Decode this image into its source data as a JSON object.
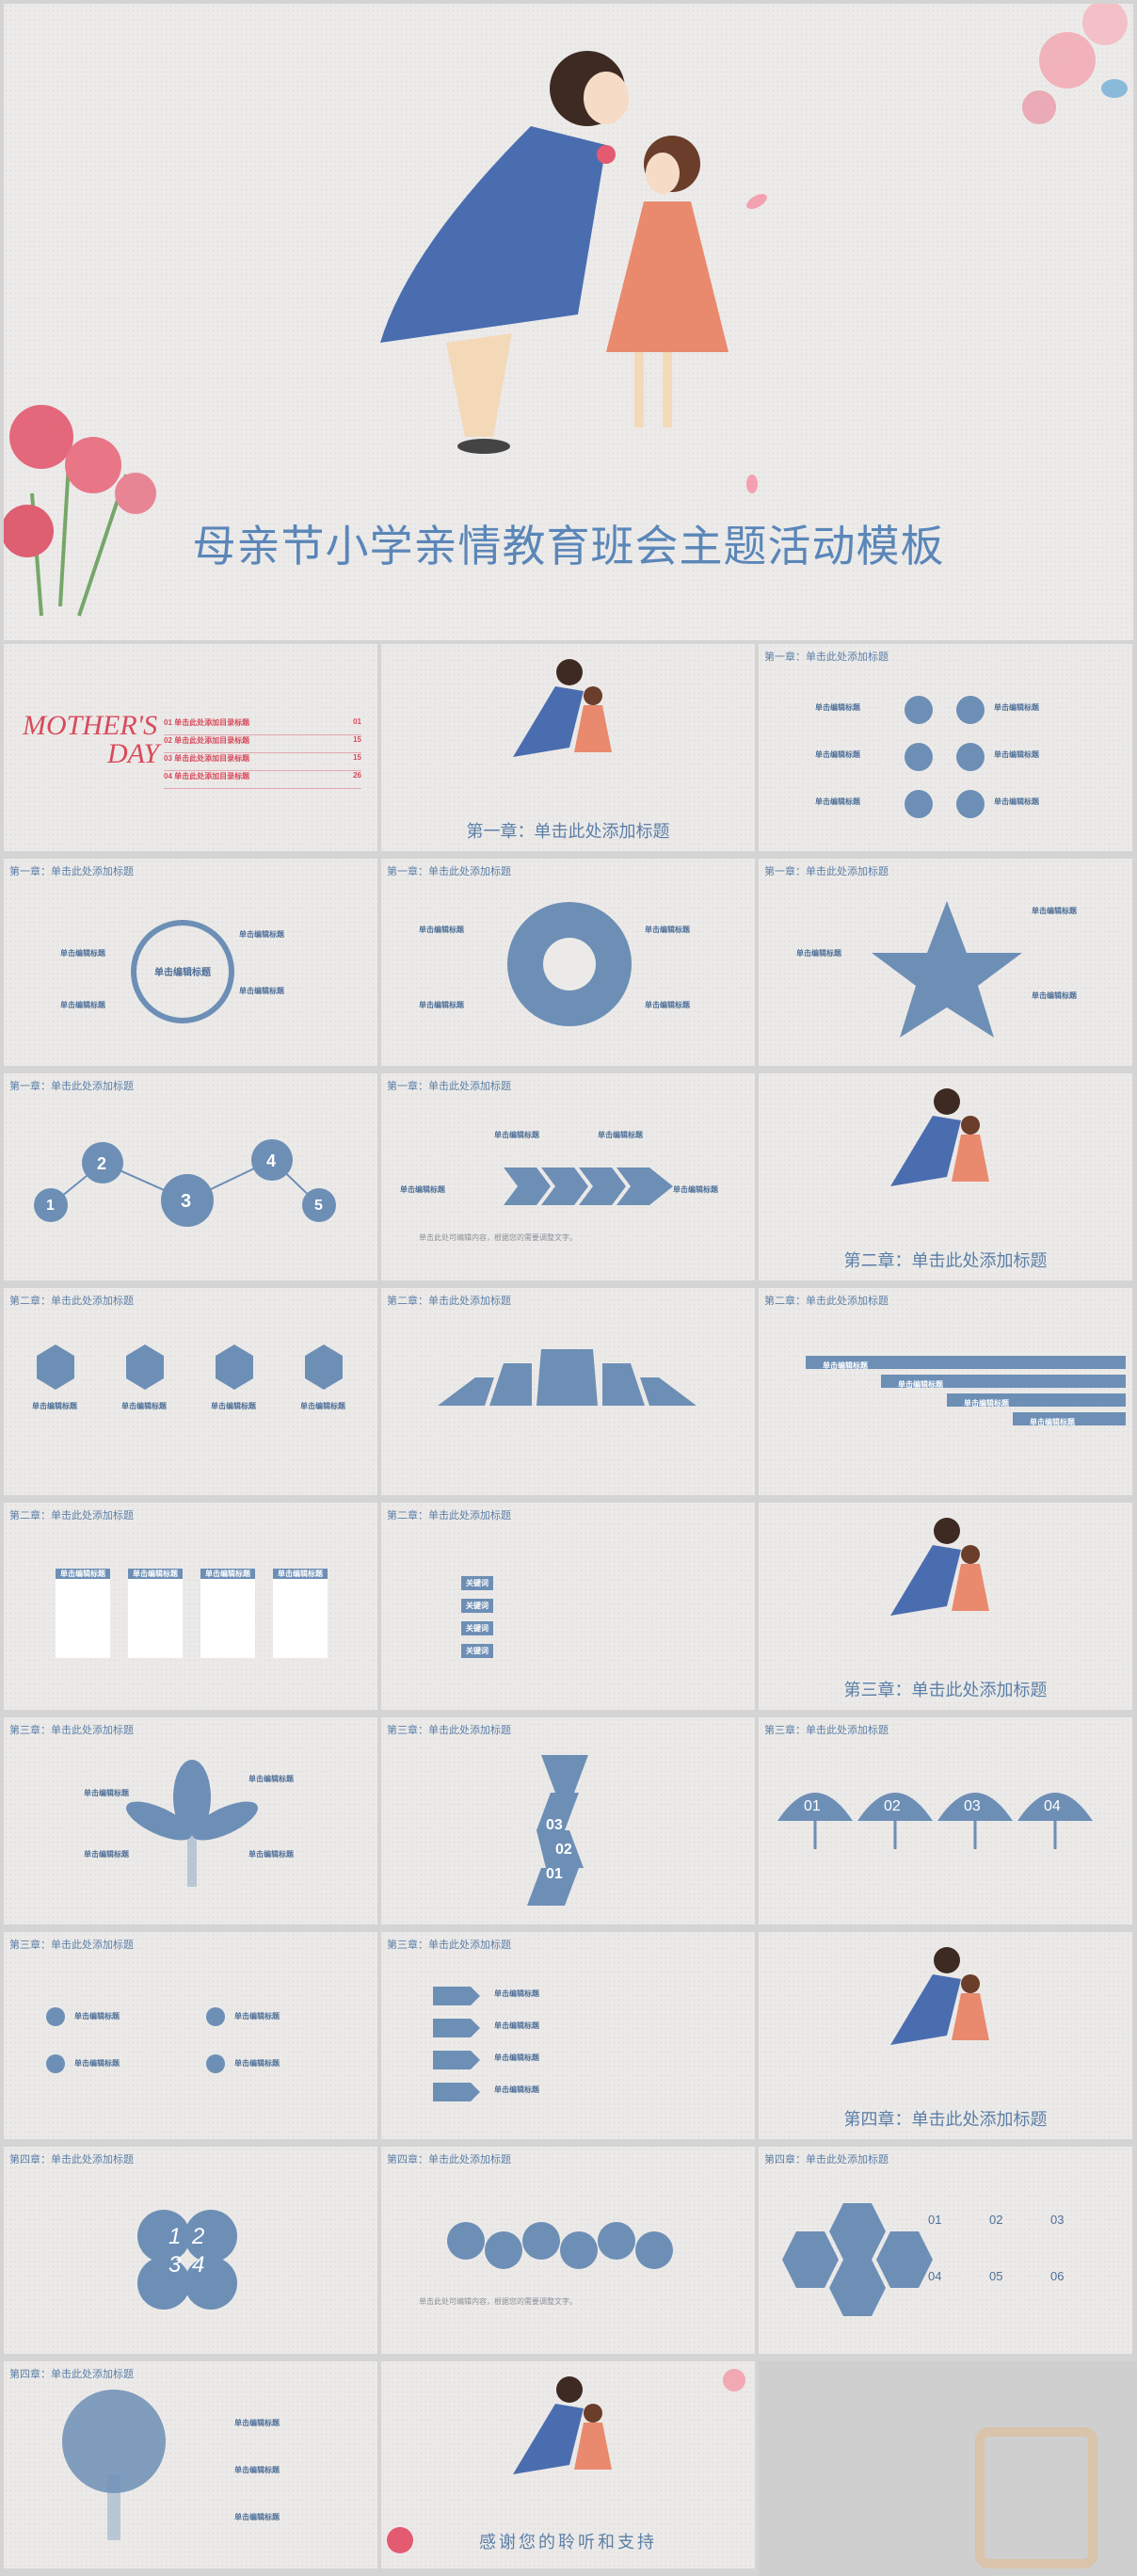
{
  "hero": {
    "title": "母亲节小学亲情教育班会主题活动模板"
  },
  "slides": {
    "s2": {
      "mothers": "MOTHER'S",
      "day": "DAY",
      "toc": [
        {
          "n": "01",
          "t": "单击此处添加目录标题",
          "p": "01"
        },
        {
          "n": "02",
          "t": "单击此处添加目录标题",
          "p": "15"
        },
        {
          "n": "03",
          "t": "单击此处添加目录标题",
          "p": "15"
        },
        {
          "n": "04",
          "t": "单击此处添加目录标题",
          "p": "26"
        }
      ]
    },
    "s3": {
      "chapter": "第一章：单击此处添加标题"
    },
    "h1": "第一章：单击此处添加标题",
    "h2": "第二章：单击此处添加标题",
    "h3": "第三章：单击此处添加标题",
    "h4": "第四章：单击此处添加标题",
    "center_title": "单击编辑标题",
    "edit_title": "单击编辑标题",
    "add_title": "添加标题",
    "key_word": "关键词",
    "body_text": "单击此处可编辑内容，根据您的需要调整文字。",
    "s9": {
      "chapter": "第二章：单击此处添加标题"
    },
    "s18": {
      "chapter": "第三章：单击此处添加标题"
    },
    "s21": {
      "nums": [
        "01",
        "02",
        "03",
        "04"
      ]
    },
    "s24": {
      "chapter": "第四章：单击此处添加标题"
    },
    "s27": {
      "nums": [
        "01",
        "02",
        "03",
        "04",
        "05",
        "06"
      ]
    },
    "s29": {
      "thanks": "感谢您的聆听和支持"
    },
    "steps": [
      "1",
      "2",
      "3",
      "4",
      "5"
    ],
    "arrow_nums": [
      "01",
      "02",
      "03"
    ],
    "petal_nums": [
      "1",
      "2",
      "3",
      "4"
    ]
  }
}
